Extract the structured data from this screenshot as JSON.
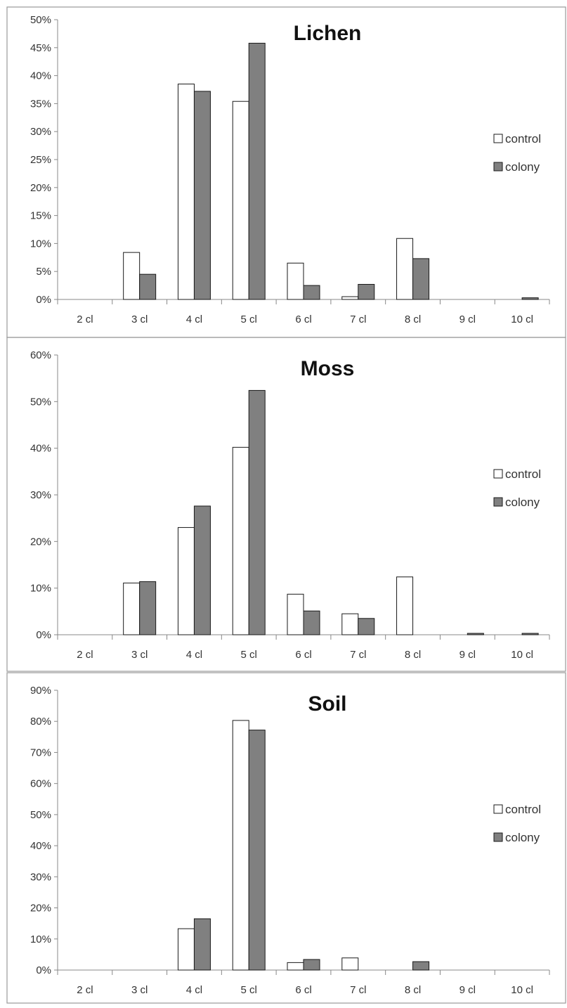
{
  "chart_data": [
    {
      "type": "bar",
      "title": "Lichen",
      "categories": [
        "2 cl",
        "3 cl",
        "4 cl",
        "5 cl",
        "6 cl",
        "7 cl",
        "8 cl",
        "9 cl",
        "10 cl"
      ],
      "series": [
        {
          "name": "control",
          "values": [
            0,
            8.4,
            38.5,
            35.4,
            6.5,
            0.5,
            10.9,
            0,
            0
          ]
        },
        {
          "name": "colony",
          "values": [
            0,
            4.5,
            37.2,
            45.8,
            2.5,
            2.7,
            7.3,
            0,
            0.3
          ]
        }
      ],
      "ylim": [
        0,
        50
      ],
      "yticks": [
        0,
        5,
        10,
        15,
        20,
        25,
        30,
        35,
        40,
        45,
        50
      ],
      "ytick_labels": [
        "0%",
        "5%",
        "10%",
        "15%",
        "20%",
        "25%",
        "30%",
        "35%",
        "40%",
        "45%",
        "50%"
      ],
      "xlabel": "",
      "ylabel": "",
      "legend": "right",
      "grid": false
    },
    {
      "type": "bar",
      "title": "Moss",
      "categories": [
        "2 cl",
        "3 cl",
        "4 cl",
        "5 cl",
        "6 cl",
        "7 cl",
        "8 cl",
        "9 cl",
        "10 cl"
      ],
      "series": [
        {
          "name": "control",
          "values": [
            0,
            11.1,
            23.0,
            40.2,
            8.7,
            4.5,
            12.4,
            0,
            0
          ]
        },
        {
          "name": "colony",
          "values": [
            0,
            11.4,
            27.6,
            52.4,
            5.1,
            3.5,
            0,
            0.3,
            0.3
          ]
        }
      ],
      "ylim": [
        0,
        60
      ],
      "yticks": [
        0,
        10,
        20,
        30,
        40,
        50,
        60
      ],
      "ytick_labels": [
        "0%",
        "10%",
        "20%",
        "30%",
        "40%",
        "50%",
        "60%"
      ],
      "xlabel": "",
      "ylabel": "",
      "legend": "right",
      "grid": false
    },
    {
      "type": "bar",
      "title": "Soil",
      "categories": [
        "2 cl",
        "3 cl",
        "4 cl",
        "5 cl",
        "6 cl",
        "7 cl",
        "8 cl",
        "9 cl",
        "10 cl"
      ],
      "series": [
        {
          "name": "control",
          "values": [
            0,
            0,
            13.3,
            80.3,
            2.4,
            3.9,
            0,
            0,
            0
          ]
        },
        {
          "name": "colony",
          "values": [
            0,
            0,
            16.5,
            77.2,
            3.4,
            0,
            2.7,
            0,
            0
          ]
        }
      ],
      "ylim": [
        0,
        90
      ],
      "yticks": [
        0,
        10,
        20,
        30,
        40,
        50,
        60,
        70,
        80,
        90
      ],
      "ytick_labels": [
        "0%",
        "10%",
        "20%",
        "30%",
        "40%",
        "50%",
        "60%",
        "70%",
        "80%",
        "90%"
      ],
      "xlabel": "",
      "ylabel": "",
      "legend": "right",
      "grid": false
    }
  ],
  "colors": {
    "control_fill": "#ffffff",
    "colony_fill": "#808080",
    "bar_stroke": "#1a1a1a",
    "axis": "#888888",
    "panel_border": "#9a9a9a"
  }
}
